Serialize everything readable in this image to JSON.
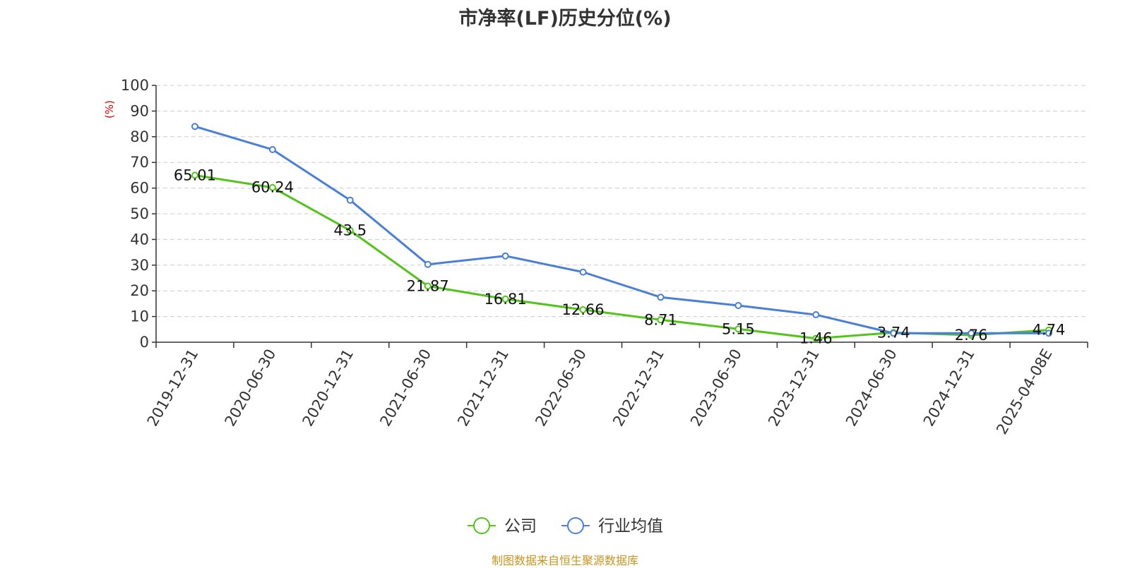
{
  "chart_data": {
    "type": "line",
    "title": "市净率(LF)历史分位(%)",
    "ylabel": "(%)",
    "xlabel": "",
    "ylim": [
      0,
      100
    ],
    "yticks": [
      0,
      10,
      20,
      30,
      40,
      50,
      60,
      70,
      80,
      90,
      100
    ],
    "grid": true,
    "legend_position": "bottom",
    "categories": [
      "2019-12-31",
      "2020-06-30",
      "2020-12-31",
      "2021-06-30",
      "2021-12-31",
      "2022-06-30",
      "2022-12-31",
      "2023-06-30",
      "2023-12-31",
      "2024-06-30",
      "2024-12-31",
      "2025-04-08E"
    ],
    "series": [
      {
        "name": "公司",
        "color": "#52c41a",
        "values": [
          65.01,
          60.24,
          43.5,
          21.87,
          16.81,
          12.66,
          8.71,
          5.15,
          1.46,
          3.74,
          2.76,
          4.74
        ],
        "labels": [
          "65.01",
          "60.24",
          "43.5",
          "21.87",
          "16.81",
          "12.66",
          "8.71",
          "5.15",
          "1.46",
          "3.74",
          "2.76",
          "4.74"
        ]
      },
      {
        "name": "行业均值",
        "color": "#4a7fd8",
        "values": [
          84,
          75,
          55.3,
          30.3,
          33.6,
          27.3,
          17.5,
          14.3,
          10.7,
          3.5,
          3.5,
          3.5
        ]
      }
    ],
    "source": "制图数据来自恒生聚源数据库"
  },
  "colors": {
    "unit_label": "#e00000",
    "axis": "#333333",
    "grid": "#cccccc",
    "source": "#c8941e"
  }
}
